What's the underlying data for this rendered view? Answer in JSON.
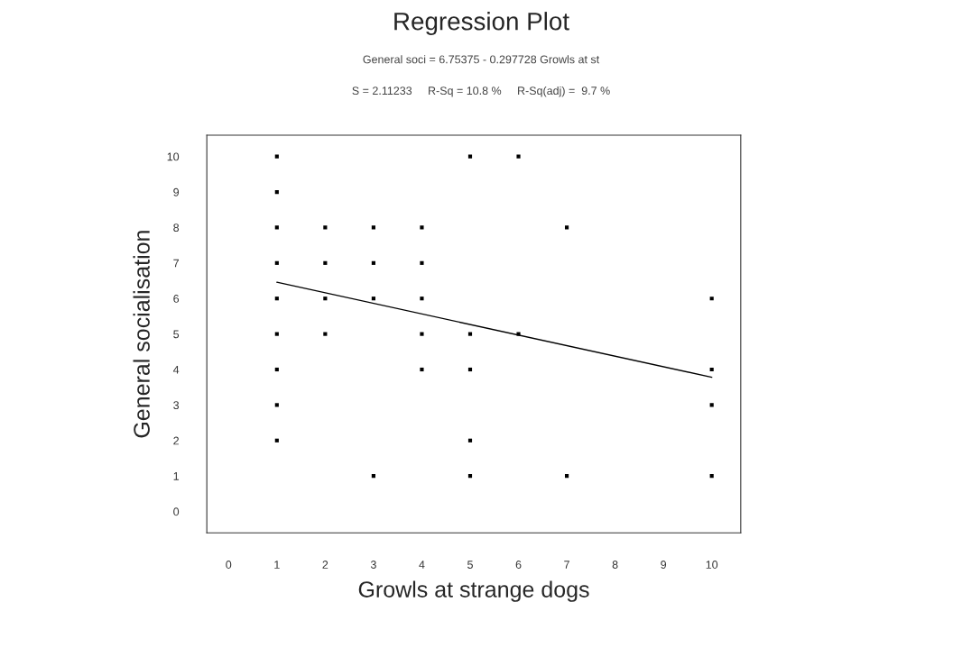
{
  "chart_data": {
    "type": "scatter",
    "title": "Regression Plot",
    "subtitle": "General soci = 6.75375 - 0.297728 Growls at st",
    "annotations": [
      "S = 2.11233     R-Sq = 10.8 %     R-Sq(adj) =  9.7 %"
    ],
    "xlabel": "Growls at strange dogs",
    "ylabel": "General socialisation",
    "series": [
      {
        "color": "#000000",
        "marker": "square",
        "x": [
          1,
          1,
          1,
          1,
          1,
          1,
          1,
          1,
          1,
          2,
          2,
          2,
          2,
          3,
          3,
          3,
          3,
          4,
          4,
          4,
          4,
          4,
          5,
          5,
          5,
          5,
          5,
          6,
          6,
          7,
          7,
          10,
          10,
          10,
          10
        ],
        "values": [
          10,
          9,
          8,
          7,
          6,
          5,
          4,
          3,
          2,
          8,
          7,
          6,
          5,
          8,
          7,
          6,
          1,
          8,
          7,
          6,
          5,
          4,
          10,
          5,
          4,
          2,
          1,
          10,
          5,
          8,
          1,
          6,
          4,
          3,
          1
        ]
      },
      {
        "type": "line",
        "color": "#000000",
        "line_style": "solid",
        "marker": "none",
        "x": [
          1,
          10
        ],
        "values": [
          6.46,
          3.78
        ]
      }
    ],
    "xlim": [
      -0.45,
      10.6
    ],
    "ylim": [
      -0.6,
      10.6
    ],
    "xticks": [
      0,
      1,
      2,
      3,
      4,
      5,
      6,
      7,
      8,
      9,
      10
    ],
    "yticks": [
      0,
      1,
      2,
      3,
      4,
      5,
      6,
      7,
      8,
      9,
      10
    ],
    "grid": false,
    "legend": false
  }
}
